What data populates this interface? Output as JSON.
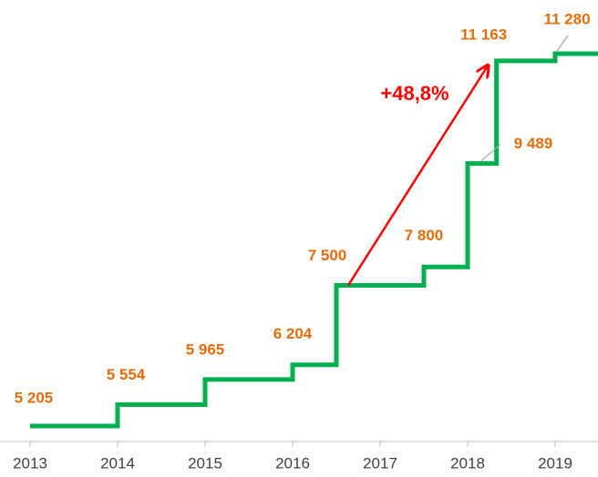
{
  "chart_data": {
    "type": "step",
    "x": [
      2013,
      2014,
      2015,
      2016,
      2016.5,
      2017.5,
      2018,
      2018.33,
      2019
    ],
    "values": [
      5205,
      5554,
      5965,
      6204,
      7500,
      7800,
      9489,
      11163,
      11280
    ],
    "value_labels": [
      "5 205",
      "5 554",
      "5 965",
      "6 204",
      "7 500",
      "7 800",
      "9 489",
      "11 163",
      "11 280"
    ],
    "color": "#00b050",
    "label_color": "#e46c0a",
    "xlim": [
      2013,
      2019.5
    ],
    "xticks": [
      2013,
      2014,
      2015,
      2016,
      2017,
      2018,
      2019
    ],
    "annotation": {
      "text": "+48,8%",
      "color": "#ff0000"
    }
  }
}
